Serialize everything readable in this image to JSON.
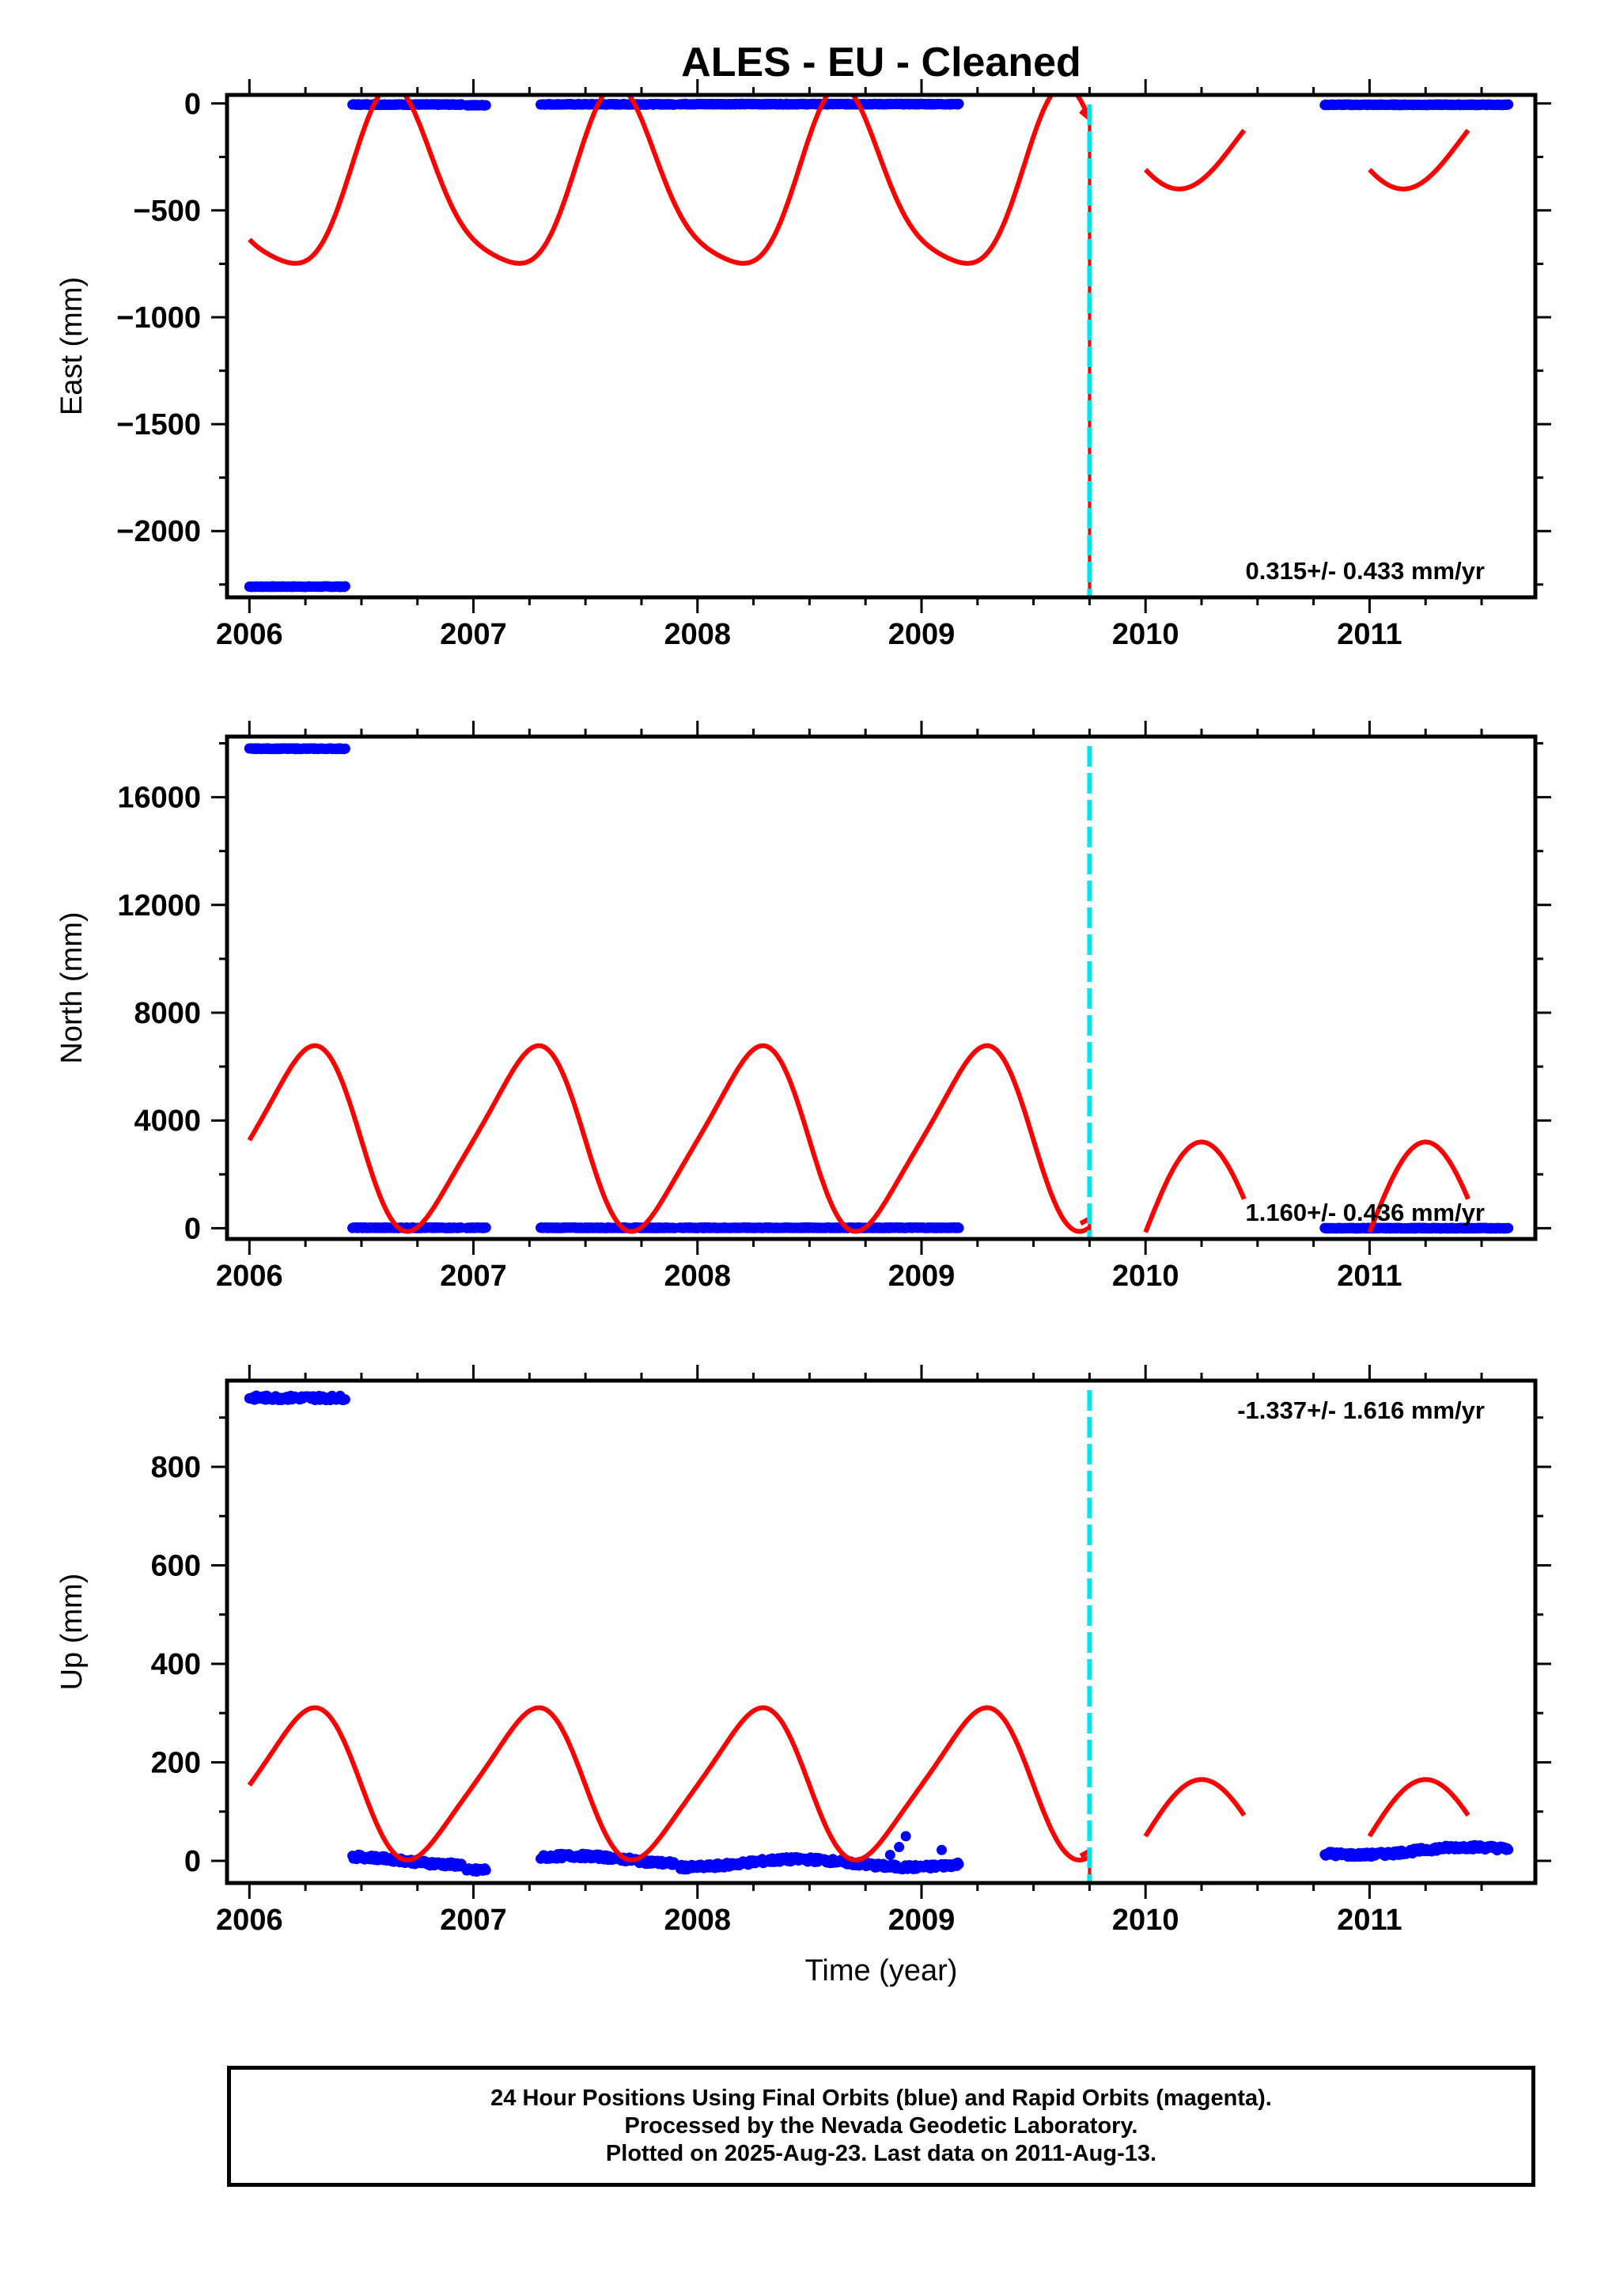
{
  "title": "ALES  - EU - Cleaned",
  "footer": {
    "line1": "24 Hour Positions Using Final Orbits (blue) and Rapid Orbits (magenta).",
    "line2": "Processed by the Nevada Geodetic Laboratory.",
    "line3": "Plotted on 2025-Aug-23. Last data on 2011-Aug-13."
  },
  "colors": {
    "final": "#0000ff",
    "model": "#ff0000",
    "offset": "#00e5ee",
    "frame": "#000000"
  },
  "chart_data": [
    {
      "type": "scatter",
      "ylabel": "East (mm)",
      "xlabel": "",
      "xlim": [
        2005.9,
        2011.74
      ],
      "ylim": [
        -2310,
        40
      ],
      "xticks": [
        "2006",
        "2007",
        "2008",
        "2009",
        "2010",
        "2011"
      ],
      "xtick_values": [
        2006,
        2007,
        2008,
        2009,
        2010,
        2011
      ],
      "yticks": [
        "0",
        "−500",
        "−1000",
        "−1500",
        "−2000"
      ],
      "ytick_values": [
        0,
        -500,
        -1000,
        -1500,
        -2000
      ],
      "rate_text": "0.315+/- 0.433 mm/yr",
      "rate_position": "bottom-right",
      "offset_epoch": 2009.75,
      "series": [
        {
          "role": "data-segments",
          "segments": [
            {
              "x": [
                2006.0,
                2006.43
              ],
              "y": -2260
            },
            {
              "x": [
                2006.46,
                2006.95
              ],
              "y": -5
            },
            {
              "x": [
                2006.97,
                2007.06
              ],
              "y": -8
            },
            {
              "x": [
                2007.3,
                2007.9
              ],
              "y": -4
            },
            {
              "x": [
                2007.92,
                2009.17
              ],
              "y": -3
            },
            {
              "x": [
                2010.8,
                2011.62
              ],
              "y": -6
            }
          ]
        },
        {
          "role": "model",
          "pieces": [
            {
              "x0": 2006.0,
              "x1": 2009.75,
              "mid": -400,
              "amp": 410,
              "phase": 0.75,
              "skew": 0.55,
              "skew_phase": 0.62
            },
            {
              "x0": 2010.0,
              "x1": 2010.44,
              "mid": -180,
              "amp": 220,
              "phase": 0.75,
              "skew": 0,
              "skew_phase": 0
            },
            {
              "x0": 2011.0,
              "x1": 2011.44,
              "mid": -180,
              "amp": 220,
              "phase": 0.75,
              "skew": 0,
              "skew_phase": 0
            }
          ]
        }
      ]
    },
    {
      "type": "scatter",
      "ylabel": "North (mm)",
      "xlabel": "",
      "xlim": [
        2005.9,
        2011.74
      ],
      "ylim": [
        -400,
        18250
      ],
      "xticks": [
        "2006",
        "2007",
        "2008",
        "2009",
        "2010",
        "2011"
      ],
      "xtick_values": [
        2006,
        2007,
        2008,
        2009,
        2010,
        2011
      ],
      "yticks": [
        "0",
        "4000",
        "8000",
        "12000",
        "16000"
      ],
      "ytick_values": [
        0,
        4000,
        8000,
        12000,
        16000
      ],
      "rate_text": "1.160+/- 0.436 mm/yr",
      "rate_position": "bottom-right",
      "offset_epoch": 2009.75,
      "series": [
        {
          "role": "data-segments",
          "segments": [
            {
              "x": [
                2006.0,
                2006.43
              ],
              "y": 17800
            },
            {
              "x": [
                2006.46,
                2006.95
              ],
              "y": 15
            },
            {
              "x": [
                2006.97,
                2007.06
              ],
              "y": 15
            },
            {
              "x": [
                2007.3,
                2007.9
              ],
              "y": 15
            },
            {
              "x": [
                2007.92,
                2009.17
              ],
              "y": 15
            },
            {
              "x": [
                2010.8,
                2011.62
              ],
              "y": 0
            }
          ]
        },
        {
          "role": "model",
          "pieces": [
            {
              "x0": 2006.0,
              "x1": 2009.75,
              "mid": 3300,
              "amp": 3300,
              "phase": 0.25,
              "skew": -0.45,
              "skew_phase": 0.62
            },
            {
              "x0": 2010.0,
              "x1": 2010.44,
              "mid": -150,
              "amp": 3350,
              "phase": 0.25,
              "skew": 0,
              "skew_phase": 0
            },
            {
              "x0": 2011.0,
              "x1": 2011.44,
              "mid": -150,
              "amp": 3350,
              "phase": 0.25,
              "skew": 0,
              "skew_phase": 0
            }
          ]
        }
      ]
    },
    {
      "type": "scatter",
      "ylabel": "Up (mm)",
      "xlabel": "Time (year)",
      "xlim": [
        2005.9,
        2011.74
      ],
      "ylim": [
        -45,
        975
      ],
      "xticks": [
        "2006",
        "2007",
        "2008",
        "2009",
        "2010",
        "2011"
      ],
      "xtick_values": [
        2006,
        2007,
        2008,
        2009,
        2010,
        2011
      ],
      "yticks": [
        "0",
        "200",
        "400",
        "600",
        "800"
      ],
      "ytick_values": [
        0,
        200,
        400,
        600,
        800
      ],
      "rate_text": "-1.337+/- 1.616 mm/yr",
      "rate_position": "top-right",
      "offset_epoch": 2009.75,
      "series": [
        {
          "role": "data-segments",
          "segments": [
            {
              "x": [
                2006.0,
                2006.43
              ],
              "y": 940
            },
            {
              "x": [
                2006.46,
                2006.95
              ],
              "y": 0
            },
            {
              "x": [
                2006.97,
                2007.06
              ],
              "y": -12
            },
            {
              "x": [
                2007.3,
                2007.9
              ],
              "y": 2
            },
            {
              "x": [
                2007.92,
                2009.17
              ],
              "y": -5
            },
            {
              "x": [
                2010.8,
                2011.62
              ],
              "y": 20
            }
          ]
        },
        {
          "role": "model",
          "pieces": [
            {
              "x0": 2006.0,
              "x1": 2009.75,
              "mid": 155,
              "amp": 148,
              "phase": 0.25,
              "skew": -0.45,
              "skew_phase": 0.62
            },
            {
              "x0": 2010.0,
              "x1": 2010.44,
              "mid": 50,
              "amp": 115,
              "phase": 0.25,
              "skew": 0,
              "skew_phase": 0
            },
            {
              "x0": 2011.0,
              "x1": 2011.44,
              "mid": 50,
              "amp": 115,
              "phase": 0.25,
              "skew": 0,
              "skew_phase": 0
            }
          ]
        }
      ]
    }
  ]
}
